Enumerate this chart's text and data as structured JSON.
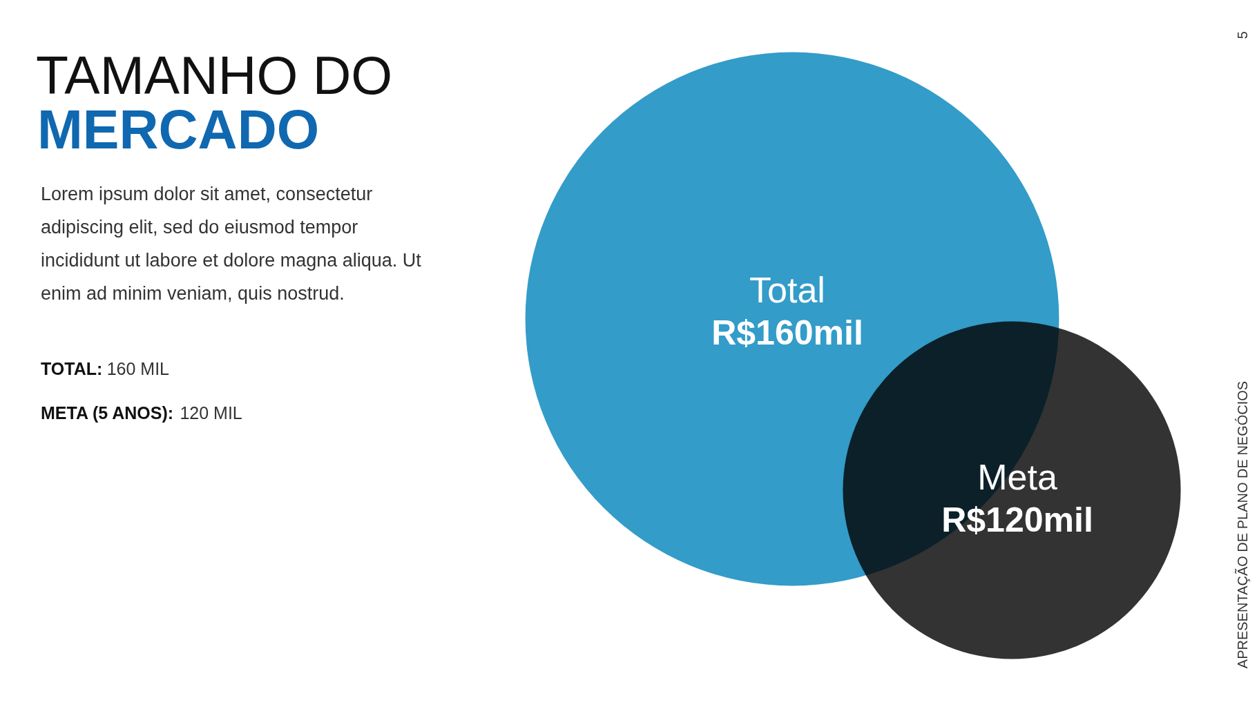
{
  "chart_data": {
    "type": "other",
    "title": "TAMANHO DO",
    "subtitle": "MERCADO",
    "categories": [
      "Total",
      "Meta"
    ],
    "values": [
      160,
      120
    ],
    "value_labels": [
      "R$160mil",
      "R$120mil"
    ],
    "colors": [
      "#339cc9",
      "#333333"
    ],
    "annotations": [
      "Lorem ipsum dolor sit amet, consectetur",
      "adipiscing elit, sed do eiusmod tempor",
      "incididunt ut labore et dolore magna aliqua. Ut",
      "enim ad minim veniam, quis nostrud.",
      "TOTAL: 160 MIL",
      "META (5 ANOS): 120 MIL",
      "APRESENTAÇÃO DE PLANO DE NEGÓCIOS",
      "5"
    ]
  }
}
